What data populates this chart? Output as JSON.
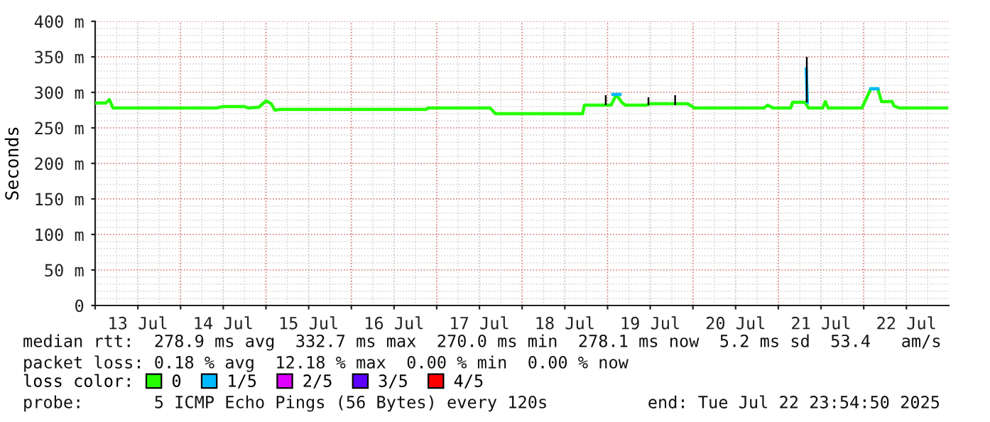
{
  "chart_data": {
    "type": "line",
    "ylabel": "Seconds",
    "ylim": [
      0,
      400
    ],
    "yticks": [
      0,
      {
        "value": 50,
        "label": "50 m"
      },
      {
        "value": 100,
        "label": "100 m"
      },
      {
        "value": 150,
        "label": "150 m"
      },
      {
        "value": 200,
        "label": "200 m"
      },
      {
        "value": 250,
        "label": "250 m"
      },
      {
        "value": 300,
        "label": "300 m"
      },
      {
        "value": 350,
        "label": "350 m"
      },
      {
        "value": 400,
        "label": "400 m"
      }
    ],
    "xlim": [
      "2025-07-13T00:00",
      "2025-07-22T23:55"
    ],
    "xticks": [
      {
        "value": "2025-07-13T00:00",
        "label": null
      },
      {
        "value": "2025-07-13T12:00",
        "label": "13 Jul"
      },
      {
        "value": "2025-07-14T00:00",
        "label": null
      },
      {
        "value": "2025-07-14T12:00",
        "label": "14 Jul"
      },
      {
        "value": "2025-07-15T00:00",
        "label": null
      },
      {
        "value": "2025-07-15T12:00",
        "label": "15 Jul"
      },
      {
        "value": "2025-07-16T00:00",
        "label": null
      },
      {
        "value": "2025-07-16T12:00",
        "label": "16 Jul"
      },
      {
        "value": "2025-07-17T00:00",
        "label": null
      },
      {
        "value": "2025-07-17T12:00",
        "label": "17 Jul"
      },
      {
        "value": "2025-07-18T00:00",
        "label": null
      },
      {
        "value": "2025-07-18T12:00",
        "label": "18 Jul"
      },
      {
        "value": "2025-07-19T00:00",
        "label": null
      },
      {
        "value": "2025-07-19T12:00",
        "label": "19 Jul"
      },
      {
        "value": "2025-07-20T00:00",
        "label": null
      },
      {
        "value": "2025-07-20T12:00",
        "label": "20 Jul"
      },
      {
        "value": "2025-07-21T00:00",
        "label": null
      },
      {
        "value": "2025-07-21T12:00",
        "label": "21 Jul"
      },
      {
        "value": "2025-07-22T00:00",
        "label": null
      },
      {
        "value": "2025-07-22T12:00",
        "label": "22 Jul"
      }
    ],
    "grid": true,
    "legend": "bottom",
    "legend_title": "loss color:",
    "series": [
      {
        "type": "bar",
        "color": "#000000",
        "x": [
          "2025-07-18T23:30",
          "2025-07-19T11:30",
          "2025-07-19T19:00",
          "2025-07-21T08:00"
        ],
        "base": [
          282,
          282,
          282,
          286
        ],
        "values": [
          14,
          11,
          14,
          64
        ]
      },
      {
        "name": "0",
        "color": "#26ff00",
        "x": [
          "2025-07-13T00:00",
          "2025-07-13T03:00",
          "2025-07-13T04:00",
          "2025-07-13T05:00",
          "2025-07-14T10:00",
          "2025-07-14T12:00",
          "2025-07-14T18:00",
          "2025-07-14T19:00",
          "2025-07-14T22:00",
          "2025-07-15T00:00",
          "2025-07-15T01:30",
          "2025-07-15T02:30",
          "2025-07-15T04:00",
          "2025-07-16T21:00",
          "2025-07-16T21:30",
          "2025-07-17T15:00",
          "2025-07-17T16:30",
          "2025-07-18T17:00",
          "2025-07-18T17:30",
          "2025-07-19T01:00",
          "2025-07-19T02:30",
          "2025-07-19T04:00",
          "2025-07-19T05:00",
          "2025-07-19T11:00",
          "2025-07-19T12:00",
          "2025-07-19T22:30",
          "2025-07-20T00:30",
          "2025-07-20T20:00",
          "2025-07-20T21:00",
          "2025-07-20T22:30",
          "2025-07-21T03:30",
          "2025-07-21T04:00",
          "2025-07-21T07:30",
          "2025-07-21T08:30",
          "2025-07-21T12:30",
          "2025-07-21T13:12",
          "2025-07-21T14:00",
          "2025-07-21T23:30",
          "2025-07-22T02:00",
          "2025-07-22T04:00",
          "2025-07-22T05:00",
          "2025-07-22T08:00",
          "2025-07-22T08:30",
          "2025-07-22T10:00",
          "2025-07-22T23:20"
        ],
        "values": [
          285,
          285,
          290,
          278,
          278,
          280,
          280,
          278,
          279,
          288,
          284,
          275,
          276,
          276,
          278,
          278,
          270,
          270,
          282,
          282,
          297,
          286,
          282,
          282,
          284,
          284,
          278,
          278,
          282,
          278,
          278,
          286,
          286,
          278,
          278,
          287,
          278,
          278,
          305,
          305,
          287,
          287,
          281,
          278,
          278
        ]
      },
      {
        "name": "1/5",
        "color": "#00b8ff",
        "x": [
          "2025-07-19T01:30",
          "2025-07-19T03:30",
          null,
          "2025-07-21T07:50",
          "2025-07-21T08:10",
          null,
          "2025-07-22T02:00",
          "2025-07-22T04:00"
        ],
        "values": [
          297,
          297,
          null,
          333,
          286,
          null,
          305,
          305
        ]
      },
      {
        "name": "2/5",
        "color": "#dd00ff"
      },
      {
        "name": "3/5",
        "color": "#5e00ff"
      },
      {
        "name": "4/5",
        "color": "#ff0000"
      }
    ],
    "annotations": [
      "median rtt:  278.9 ms avg  332.7 ms max  270.0 ms min  278.1 ms now  5.2 ms sd  53.4   am/s",
      "packet loss: 0.18 % avg  12.18 % max  0.00 % min  0.00 % now",
      "probe:       5 ICMP Echo Pings (56 Bytes) every 120s",
      "end: Tue Jul 22 23:54:50 2025"
    ]
  }
}
